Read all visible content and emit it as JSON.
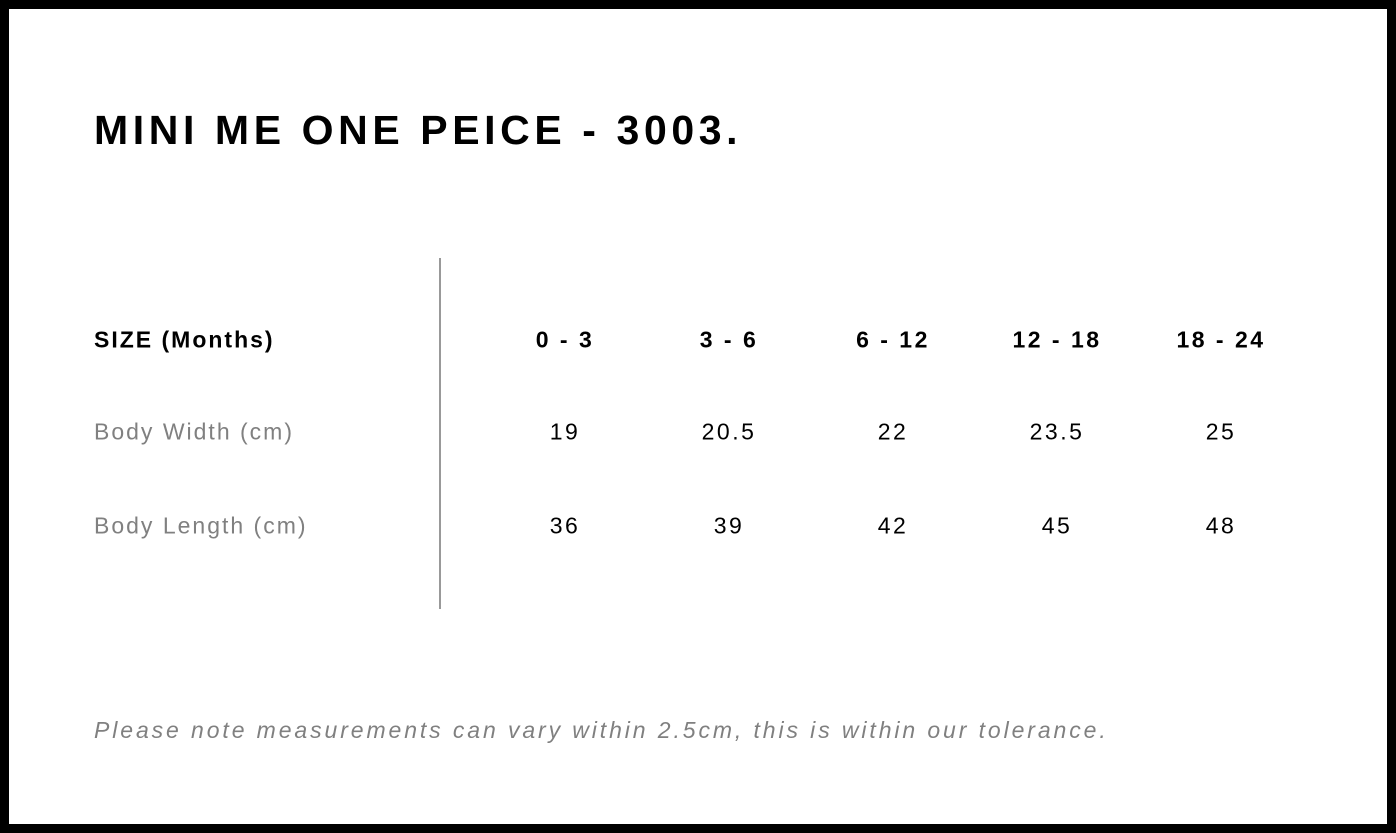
{
  "title": "MINI ME ONE PEICE - 3003.",
  "table": {
    "header_label": "SIZE (Months)",
    "sizes": [
      "0 - 3",
      "3 - 6",
      "6 - 12",
      "12 - 18",
      "18 - 24"
    ],
    "rows": [
      {
        "label": "Body Width (cm)",
        "values": [
          "19",
          "20.5",
          "22",
          "23.5",
          "25"
        ]
      },
      {
        "label": "Body Length (cm)",
        "values": [
          "36",
          "39",
          "42",
          "45",
          "48"
        ]
      }
    ]
  },
  "note": "Please note measurements can vary within 2.5cm, this is within our tolerance."
}
